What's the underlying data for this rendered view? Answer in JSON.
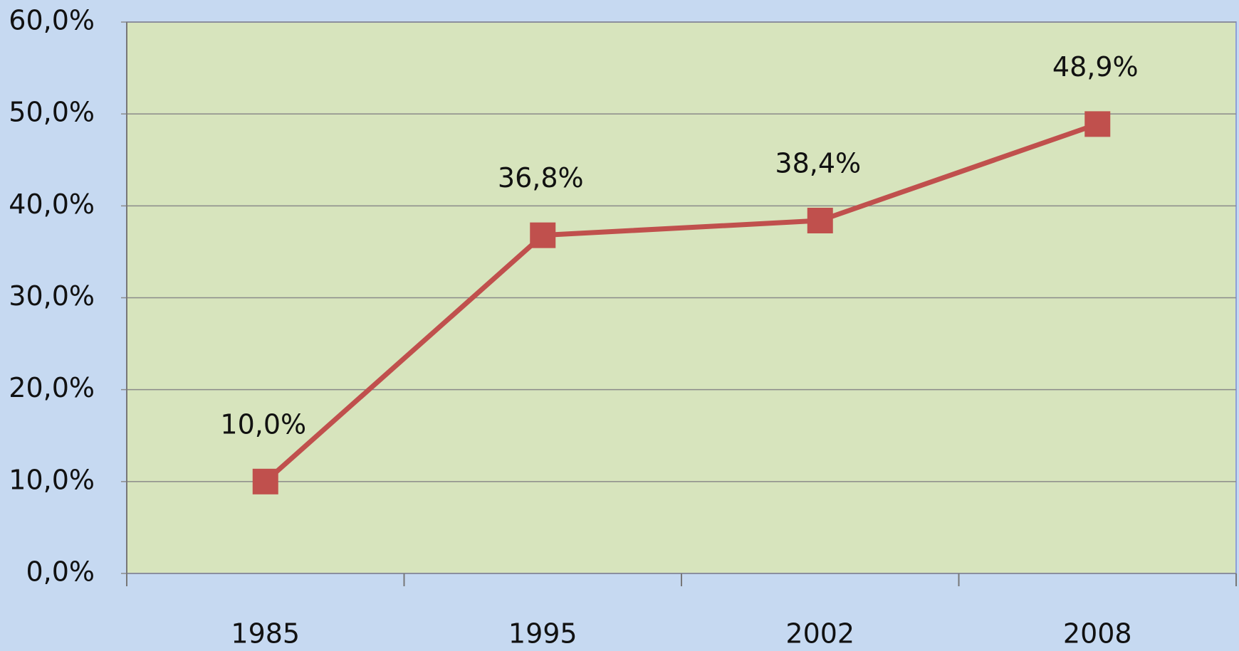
{
  "chart_data": {
    "type": "line",
    "categories": [
      "1985",
      "1995",
      "2002",
      "2008"
    ],
    "series": [
      {
        "color": "#c0504d",
        "values": [
          10.0,
          36.8,
          38.4,
          48.9
        ],
        "value_labels": [
          "10,0%",
          "36,8%",
          "38,4%",
          "48,9%"
        ]
      }
    ],
    "ylim": [
      0,
      60
    ],
    "yticks": [
      {
        "value": 0,
        "label": "0,0%"
      },
      {
        "value": 10,
        "label": "10,0%"
      },
      {
        "value": 20,
        "label": "20,0%"
      },
      {
        "value": 30,
        "label": "30,0%"
      },
      {
        "value": 40,
        "label": "40,0%"
      },
      {
        "value": 50,
        "label": "50,0%"
      },
      {
        "value": 60,
        "label": "60,0%"
      }
    ],
    "grid": true
  }
}
